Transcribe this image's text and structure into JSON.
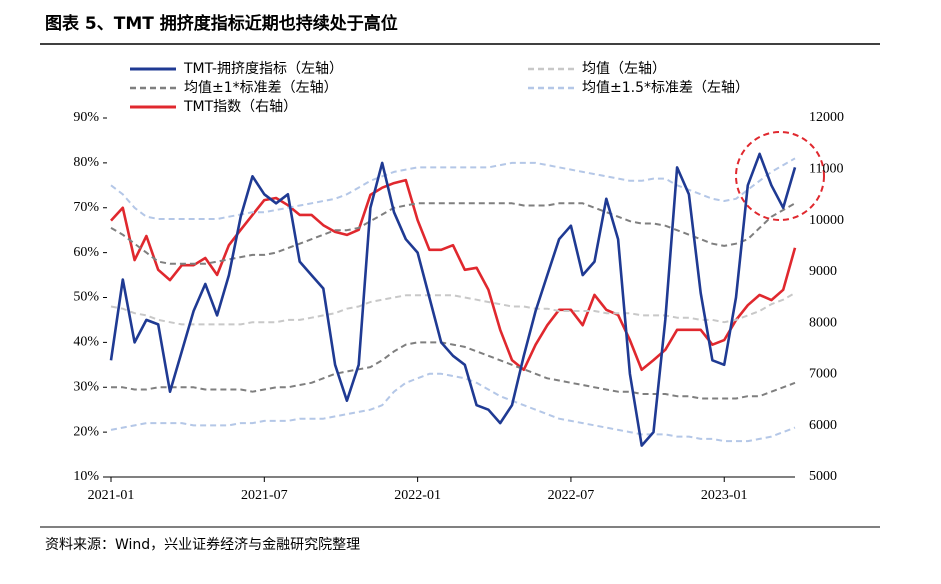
{
  "chart_data": {
    "type": "line",
    "title": "图表 5、TMT 拥挤度指标近期也持续处于高位",
    "source": "资料来源：Wind，兴业证券经济与金融研究院整理",
    "categories": [
      "2021-01",
      null,
      null,
      null,
      null,
      null,
      null,
      null,
      null,
      null,
      null,
      null,
      null,
      "2021-07",
      null,
      null,
      null,
      null,
      null,
      null,
      null,
      null,
      null,
      null,
      null,
      null,
      "2022-01",
      null,
      null,
      null,
      null,
      null,
      null,
      null,
      null,
      null,
      null,
      null,
      null,
      "2022-07",
      null,
      null,
      null,
      null,
      null,
      null,
      null,
      null,
      null,
      null,
      null,
      null,
      "2023-01",
      null,
      null,
      null,
      null,
      null,
      null
    ],
    "ylim": [
      10,
      90
    ],
    "yticks": [
      {
        "value": 10,
        "label": "10%"
      },
      {
        "value": 20,
        "label": "20%"
      },
      {
        "value": 30,
        "label": "30%"
      },
      {
        "value": 40,
        "label": "40%"
      },
      {
        "value": 50,
        "label": "50%"
      },
      {
        "value": 60,
        "label": "60%"
      },
      {
        "value": 70,
        "label": "70%"
      },
      {
        "value": 80,
        "label": "80%"
      },
      {
        "value": 90,
        "label": "90%"
      }
    ],
    "y2lim": [
      5000,
      12000
    ],
    "y2ticks": [
      5000,
      6000,
      7000,
      8000,
      9000,
      10000,
      11000,
      12000
    ],
    "series": [
      {
        "name": "TMT-拥挤度指标（左轴）",
        "color": "#1f3a93",
        "dashed": false,
        "values": [
          36,
          54,
          40,
          45,
          44,
          29,
          38,
          47,
          53,
          46,
          55,
          68,
          77,
          73,
          71,
          73,
          58,
          55,
          52,
          35,
          27,
          35,
          70,
          80,
          69,
          63,
          60,
          50,
          40,
          37,
          35,
          26,
          25,
          22,
          26,
          37,
          47,
          55,
          63,
          66,
          55,
          58,
          72,
          63,
          33,
          17,
          20,
          45,
          79,
          73,
          51,
          36,
          35,
          50,
          75,
          82,
          75,
          70,
          79
        ]
      },
      {
        "name": "均值（左轴）",
        "color": "#c8c8c8",
        "dashed": true,
        "values": [
          48,
          47.5,
          46.5,
          46,
          45,
          44.5,
          44,
          44,
          44,
          44,
          44,
          44,
          44.5,
          44.5,
          44.5,
          45,
          45,
          45.5,
          46,
          46.5,
          47.5,
          48,
          49,
          49.5,
          50,
          50.5,
          50.5,
          50.5,
          50.5,
          50.5,
          50,
          49.5,
          49,
          48.5,
          48,
          48,
          47.5,
          47.5,
          47,
          47,
          47,
          47,
          46.5,
          46.5,
          46.5,
          46,
          46,
          46,
          45.5,
          45.5,
          45,
          45,
          44.5,
          45,
          46,
          47,
          48.5,
          49.5,
          51
        ]
      },
      {
        "name": "均值±1*标准差（左轴）",
        "color": "#7f7f7f",
        "dashed": true,
        "values": [
          65.5,
          64,
          62,
          60,
          58,
          57.5,
          57.5,
          57.5,
          57.5,
          58,
          58.5,
          59,
          59.5,
          59.5,
          60,
          61,
          62,
          63,
          64,
          65,
          65,
          65.5,
          67,
          68.5,
          70,
          70.5,
          71,
          71,
          71,
          71,
          71,
          71,
          71,
          71,
          71,
          70.5,
          70.5,
          70.5,
          71,
          71,
          71,
          70,
          69,
          68,
          67,
          66.5,
          66.5,
          66,
          65,
          64,
          63,
          62,
          61.5,
          62,
          63,
          65.5,
          68,
          69.5,
          71
        ],
        "lower": [
          30,
          30,
          29.5,
          29.5,
          30,
          30,
          30,
          30,
          29.5,
          29.5,
          29.5,
          29.5,
          29,
          29.5,
          30,
          30,
          30.5,
          31,
          32,
          33,
          33.5,
          34,
          34.5,
          36,
          38,
          39.5,
          40,
          40,
          40,
          39.5,
          39,
          38,
          37,
          36,
          35,
          34,
          33,
          32,
          31.5,
          31,
          30.5,
          30,
          29.5,
          29,
          29,
          28.5,
          28.5,
          28.5,
          28,
          28,
          27.5,
          27.5,
          27.5,
          27.5,
          28,
          28,
          29,
          30,
          31
        ]
      },
      {
        "name": "均值±1.5*标准差（左轴）",
        "color": "#b4c7e7",
        "dashed": true,
        "values": [
          75,
          73,
          70,
          68,
          67.5,
          67.5,
          67.5,
          67.5,
          67.5,
          67.5,
          68,
          68.5,
          69,
          69,
          69.5,
          70,
          70.5,
          71,
          71.5,
          72,
          73,
          74.5,
          76,
          77,
          78,
          78.5,
          79,
          79,
          79,
          79,
          79,
          79,
          79,
          79.5,
          80,
          80,
          80,
          79.5,
          79,
          78.5,
          78,
          77.5,
          77,
          76.5,
          76,
          76,
          76.5,
          76.5,
          75,
          74,
          73,
          72,
          71.5,
          72,
          74,
          76,
          78,
          79.5,
          81
        ],
        "lower": [
          20.5,
          21,
          21.5,
          22,
          22,
          22,
          22,
          21.5,
          21.5,
          21.5,
          21.5,
          22,
          22,
          22.5,
          22.5,
          22.5,
          23,
          23,
          23,
          23.5,
          24,
          24.5,
          25,
          26,
          29,
          31,
          32,
          33,
          33,
          32.5,
          32,
          31,
          29.5,
          28,
          27,
          26,
          25,
          24,
          23,
          22.5,
          22,
          21.5,
          21,
          20.5,
          20,
          19.5,
          19.5,
          19.5,
          19,
          19,
          18.5,
          18.5,
          18,
          18,
          18,
          18.5,
          19,
          20,
          21
        ]
      },
      {
        "name": "TMT指数（右轴）",
        "color": "#e0282e",
        "dashed": false,
        "axis": "y2",
        "values": [
          10000,
          10250,
          9230,
          9700,
          9040,
          8840,
          9130,
          9130,
          9270,
          8940,
          9520,
          9820,
          10110,
          10400,
          10440,
          10300,
          10110,
          10110,
          9910,
          9780,
          9720,
          9820,
          10500,
          10640,
          10730,
          10790,
          10010,
          9430,
          9430,
          9520,
          9040,
          9080,
          8650,
          7870,
          7280,
          7090,
          7580,
          7960,
          8260,
          8260,
          7960,
          8550,
          8260,
          8160,
          7670,
          7090,
          7280,
          7480,
          7870,
          7870,
          7870,
          7580,
          7670,
          8060,
          8350,
          8550,
          8450,
          8650,
          9470
        ]
      }
    ]
  }
}
